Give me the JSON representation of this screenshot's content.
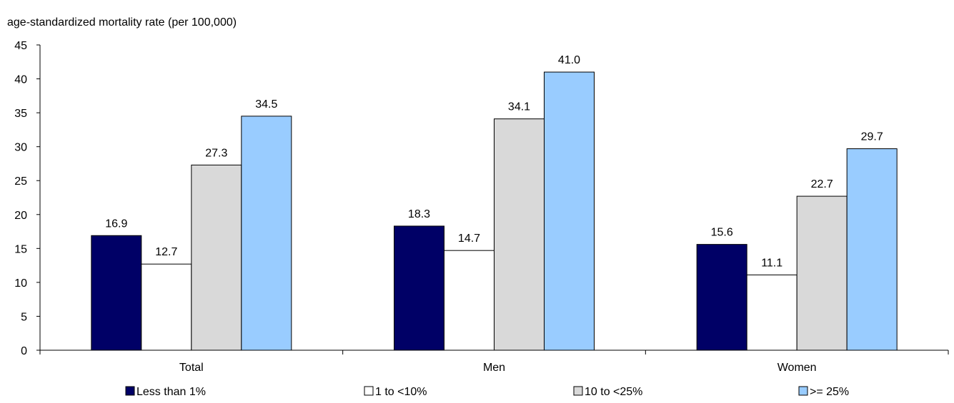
{
  "chart_data": {
    "type": "bar",
    "ylabel": "age-standardized mortality rate (per 100,000)",
    "categories": [
      "Total",
      "Men",
      "Women"
    ],
    "ylim": [
      0,
      45
    ],
    "yticks": [
      0,
      5,
      10,
      15,
      20,
      25,
      30,
      35,
      40,
      45
    ],
    "grid": false,
    "legend_position": "bottom",
    "series": [
      {
        "name": "Less than 1%",
        "color": "#000066",
        "values": [
          16.9,
          18.3,
          15.6
        ]
      },
      {
        "name": "1 to <10%",
        "color": "#ffffff",
        "values": [
          12.7,
          14.7,
          11.1
        ]
      },
      {
        "name": "10 to <25%",
        "color": "#d9d9d9",
        "values": [
          27.3,
          34.1,
          22.7
        ]
      },
      {
        "name": ">= 25%",
        "color": "#99ccff",
        "values": [
          34.5,
          41.0,
          29.7
        ]
      }
    ]
  }
}
